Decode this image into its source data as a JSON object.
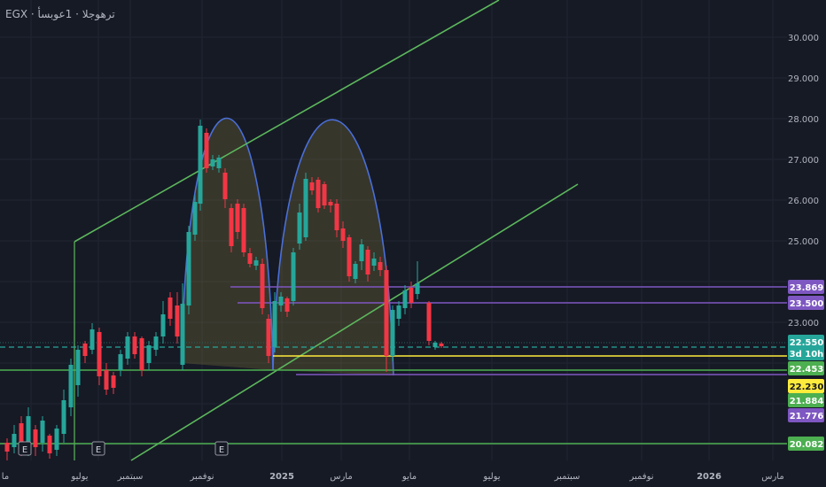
{
  "header": {
    "symbol_line": "EGX · ترهوجلا · 1عوبسأ"
  },
  "chart_data": {
    "type": "candlestick",
    "timeframe_note": "weekly",
    "y_axis": {
      "ticks": [
        "30.000",
        "29.000",
        "28.000",
        "27.000",
        "26.000",
        "25.000",
        "23.000"
      ],
      "ylim": [
        19.6,
        30.6
      ]
    },
    "x_axis": {
      "ticks": [
        "ما",
        "يوليو",
        "سبتمبر",
        "نوفمبر",
        "2025",
        "مارس",
        "مايو",
        "يوليو",
        "سبتمبر",
        "نوفمبر",
        "2026",
        "مارس"
      ]
    },
    "price_badges": [
      {
        "label": "23.869",
        "color": "#7e57c2"
      },
      {
        "label": "23.500",
        "color": "#7e57c2"
      },
      {
        "label": "22.550",
        "color": "#26a69a"
      },
      {
        "label": "3d 10h",
        "color": "#26a69a"
      },
      {
        "label": "22.453",
        "color": "#4caf50"
      },
      {
        "label": "22.230",
        "color": "#ffeb3b"
      },
      {
        "label": "21.884",
        "color": "#4caf50"
      },
      {
        "label": "21.776",
        "color": "#7e57c2"
      },
      {
        "label": "20.082",
        "color": "#4caf50"
      }
    ],
    "events": [
      "E",
      "E",
      "E"
    ],
    "colors": {
      "up": "#26a69a",
      "down": "#f23645",
      "channel": "#5cb85c",
      "arc": "#4a6fd8",
      "level_purple": "#7e57c2",
      "level_yellow": "#ffeb3b",
      "level_green": "#4caf50"
    }
  }
}
